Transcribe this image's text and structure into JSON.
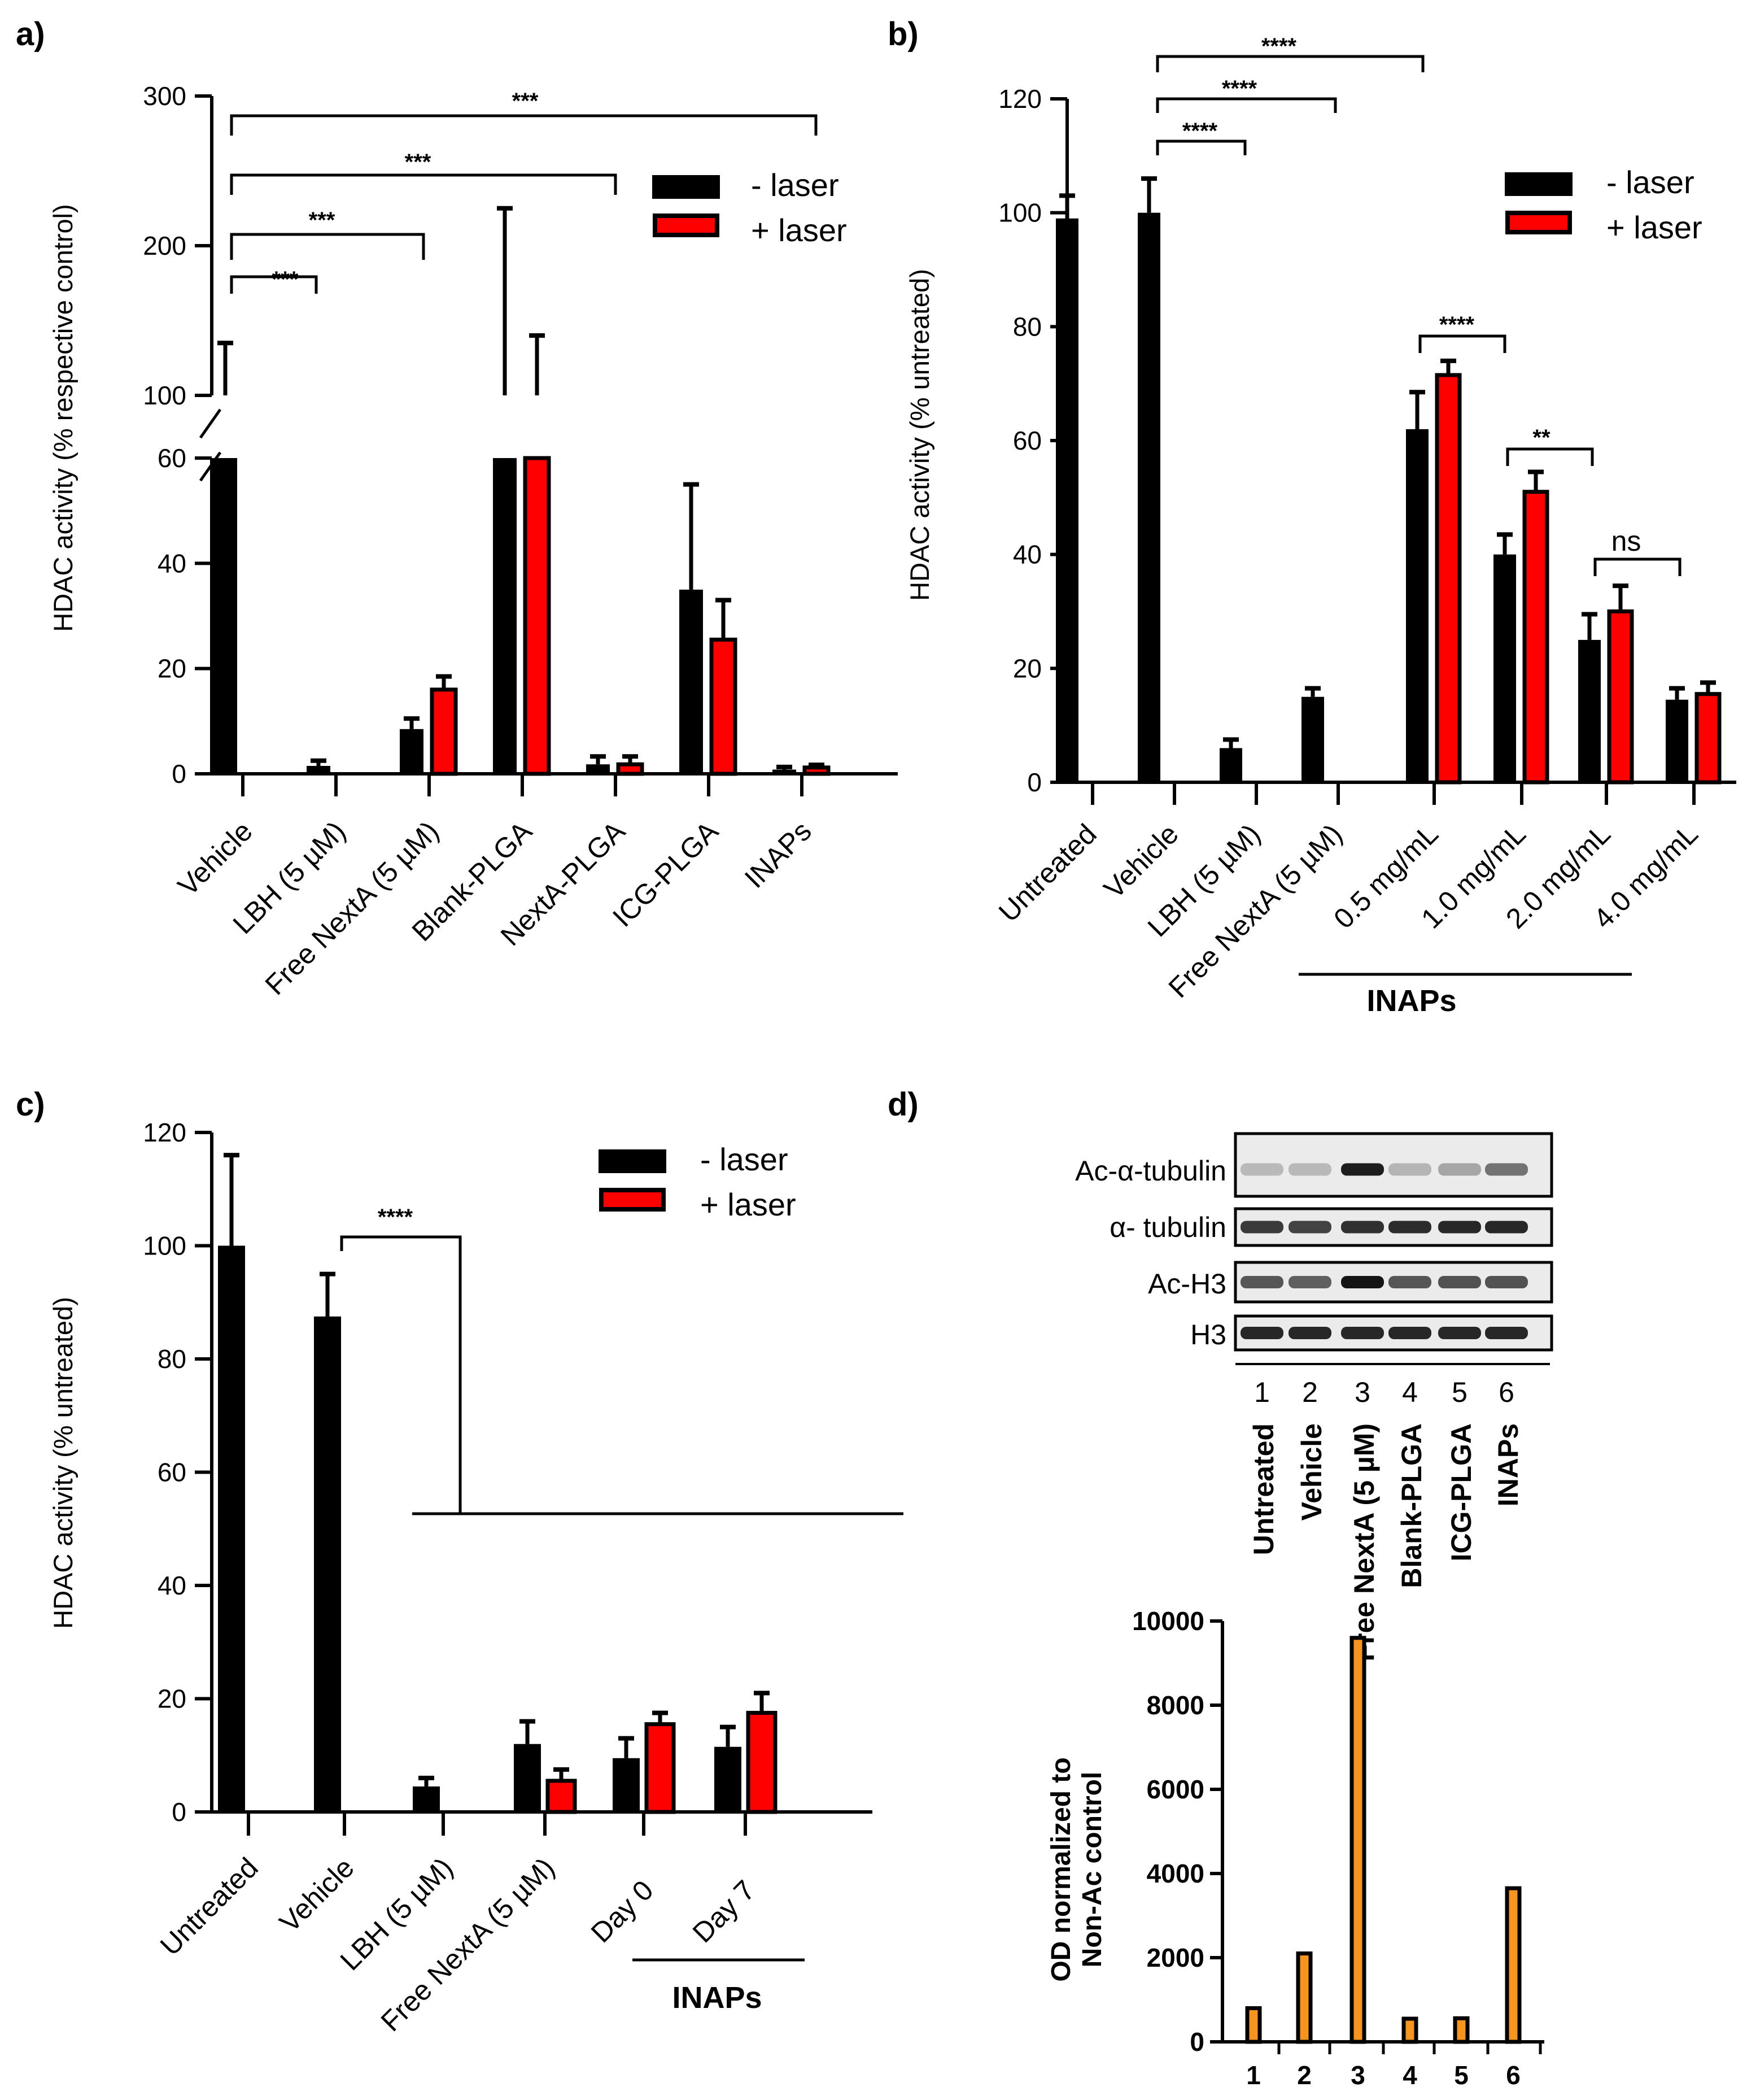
{
  "colors": {
    "minus_laser": "#000000",
    "plus_laser": "#ff0000",
    "od_bar": "#f7941d",
    "axis": "#000000"
  },
  "chart_data": [
    {
      "panel": "a)",
      "type": "bar",
      "ylabel": "HDAC activity (% respective control)",
      "y_axis_break": {
        "lower": [
          0,
          60
        ],
        "upper": [
          100,
          300
        ]
      },
      "lower_ticks": [
        "0",
        "20",
        "40",
        "60"
      ],
      "upper_ticks": [
        "100",
        "200",
        "300"
      ],
      "categories": [
        "Vehicle",
        "LBH (5 µM)",
        "Free NextA (5 µM)",
        "Blank-PLGA",
        "NextA-PLGA",
        "ICG-PLGA",
        "INAPs"
      ],
      "series": [
        {
          "name": "- laser",
          "values": [
            100,
            1.5,
            8.5,
            100,
            1.8,
            35,
            0.8
          ],
          "errors": [
            35,
            1,
            2,
            125,
            1.5,
            20,
            0.5
          ]
        },
        {
          "name": "+ laser",
          "values": [
            null,
            null,
            16,
            100,
            1.8,
            25.5,
            1.2
          ],
          "errors": [
            null,
            null,
            2.5,
            40,
            1.5,
            7.5,
            0.5
          ]
        }
      ],
      "legend": [
        "- laser",
        "+ laser"
      ],
      "significance": [
        "***",
        "***",
        "***",
        "***"
      ]
    },
    {
      "panel": "b)",
      "type": "bar",
      "ylabel": "HDAC activity (% untreated)",
      "ylim": [
        0,
        120
      ],
      "ticks": [
        "0",
        "20",
        "40",
        "60",
        "80",
        "100",
        "120"
      ],
      "categories": [
        "Untreated",
        "Vehicle",
        "LBH (5 µM)",
        "Free NextA (5 µM)",
        "0.5 mg/mL",
        "1.0 mg/mL",
        "2.0 mg/mL",
        "4.0 mg/mL"
      ],
      "group_label": "INAPs",
      "series": [
        {
          "name": "- laser",
          "values": [
            99,
            100,
            6,
            15,
            62,
            40,
            25,
            14.5
          ],
          "errors": [
            4,
            6,
            1.5,
            1.5,
            6.5,
            3.5,
            4.5,
            2
          ]
        },
        {
          "name": "+ laser",
          "values": [
            null,
            null,
            null,
            null,
            71.5,
            51,
            30,
            15.5
          ],
          "errors": [
            null,
            null,
            null,
            null,
            2.5,
            3.5,
            4.5,
            2
          ]
        }
      ],
      "legend": [
        "- laser",
        "+ laser"
      ],
      "significance": [
        "****",
        "****",
        "****",
        "****",
        "**",
        "ns"
      ]
    },
    {
      "panel": "c)",
      "type": "bar",
      "ylabel": "HDAC activity (% untreated)",
      "ylim": [
        0,
        120
      ],
      "ticks": [
        "0",
        "20",
        "40",
        "60",
        "80",
        "100",
        "120"
      ],
      "categories": [
        "Untreated",
        "Vehicle",
        "LBH (5 µM)",
        "Free NextA (5 µM)",
        "Day 0",
        "Day 7"
      ],
      "group_label": "INAPs",
      "series": [
        {
          "name": "- laser",
          "values": [
            100,
            87.5,
            4.5,
            12,
            9.5,
            11.5
          ],
          "errors": [
            16,
            7.5,
            1.5,
            4,
            3.5,
            3.5
          ]
        },
        {
          "name": "+ laser",
          "values": [
            null,
            null,
            null,
            5.5,
            15.5,
            17.5
          ],
          "errors": [
            null,
            null,
            null,
            2,
            2,
            3.5
          ]
        }
      ],
      "legend": [
        "- laser",
        "+ laser"
      ],
      "significance": [
        "****"
      ]
    },
    {
      "panel": "d)",
      "type": "bar",
      "ylabel_lines": [
        "OD normalized to",
        "Non-Ac control"
      ],
      "ylim": [
        0,
        10000
      ],
      "ticks": [
        "0",
        "2000",
        "4000",
        "6000",
        "8000",
        "10000"
      ],
      "categories": [
        "1",
        "2",
        "3",
        "4",
        "5",
        "6"
      ],
      "values": [
        800,
        2100,
        9600,
        550,
        560,
        3650
      ]
    }
  ],
  "panel_d_blot": {
    "rows": [
      "Ac-α-tubulin",
      "α- tubulin",
      "Ac-H3",
      "H3"
    ],
    "lanes": [
      "1",
      "2",
      "3",
      "4",
      "5",
      "6"
    ],
    "lane_labels": [
      "Untreated",
      "Vehicle",
      "Free NextA (5 µM)",
      "Blank-PLGA",
      "ICG-PLGA",
      "INAPs"
    ],
    "band_intensity": [
      [
        0.08,
        0.08,
        0.9,
        0.1,
        0.18,
        0.45
      ],
      [
        0.75,
        0.7,
        0.8,
        0.82,
        0.85,
        0.85
      ],
      [
        0.6,
        0.55,
        0.95,
        0.6,
        0.62,
        0.62
      ],
      [
        0.85,
        0.85,
        0.85,
        0.85,
        0.85,
        0.85
      ]
    ]
  }
}
